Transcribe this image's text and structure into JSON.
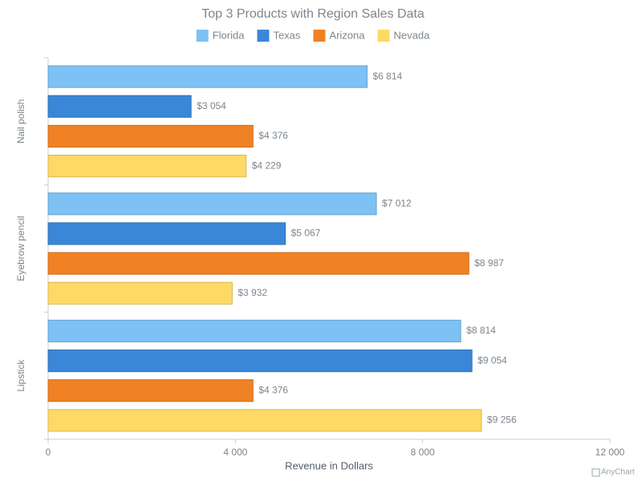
{
  "chart_data": {
    "type": "hbar",
    "title": "Top 3 Products with Region Sales Data",
    "categories": [
      "Nail polish",
      "Eyebrow pencil",
      "Lipstick"
    ],
    "series": [
      {
        "name": "Florida",
        "color": "#7dc1f5",
        "values": [
          6814,
          7012,
          8814
        ],
        "value_labels": [
          "$6 814",
          "$7 012",
          "$8 814"
        ]
      },
      {
        "name": "Texas",
        "color": "#3a87d8",
        "values": [
          3054,
          5067,
          9054
        ],
        "value_labels": [
          "$3 054",
          "$5 067",
          "$9 054"
        ]
      },
      {
        "name": "Arizona",
        "color": "#f08124",
        "values": [
          4376,
          8987,
          4376
        ],
        "value_labels": [
          "$4 376",
          "$8 987",
          "$4 376"
        ]
      },
      {
        "name": "Nevada",
        "color": "#fed966",
        "values": [
          4229,
          3932,
          9256
        ],
        "value_labels": [
          "$4 229",
          "$3 932",
          "$9 256"
        ]
      }
    ],
    "xlabel": "Revenue in Dollars",
    "xlim": [
      0,
      12000
    ],
    "xticks": [
      0,
      {
        "value": 4000,
        "label": "4 000"
      },
      {
        "value": 8000,
        "label": "8 000"
      },
      {
        "value": 12000,
        "label": "12 000"
      }
    ],
    "legend": "top",
    "credit": "AnyChart"
  }
}
